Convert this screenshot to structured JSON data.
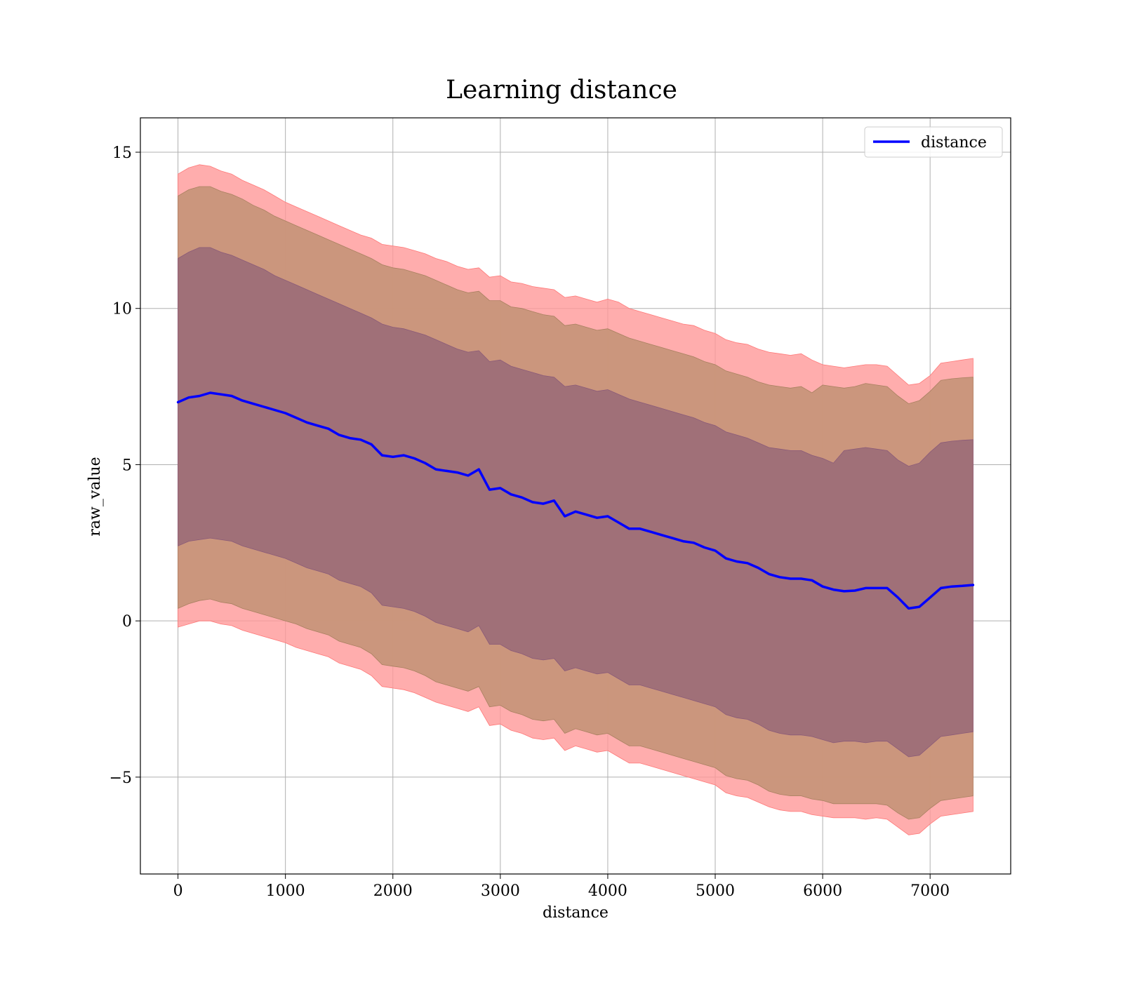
{
  "chart_data": {
    "type": "line",
    "title": "Learning distance",
    "xlabel": "distance",
    "ylabel": "raw_value",
    "xlim": [
      -350,
      7750
    ],
    "ylim": [
      -8.1,
      16.1
    ],
    "x_ticks": [
      0,
      1000,
      2000,
      3000,
      4000,
      5000,
      6000,
      7000
    ],
    "x_tick_labels": [
      "0",
      "1000",
      "2000",
      "3000",
      "4000",
      "5000",
      "6000",
      "7000"
    ],
    "y_ticks": [
      -5,
      0,
      5,
      10,
      15
    ],
    "y_tick_labels": [
      "−5",
      "0",
      "5",
      "10",
      "15"
    ],
    "grid": true,
    "legend": {
      "placement": "top-right",
      "entries": [
        "distance"
      ]
    },
    "colors": {
      "line": "#0000ff",
      "outer_band": "#ff9999",
      "middle_band": "#c8957a",
      "inner_band": "#a07078"
    },
    "series": [
      {
        "name": "distance",
        "x": [
          0,
          100,
          200,
          300,
          400,
          500,
          600,
          700,
          800,
          900,
          1000,
          1100,
          1200,
          1300,
          1400,
          1500,
          1600,
          1700,
          1800,
          1900,
          2000,
          2100,
          2200,
          2300,
          2400,
          2500,
          2600,
          2700,
          2800,
          2900,
          3000,
          3100,
          3200,
          3300,
          3400,
          3500,
          3600,
          3700,
          3800,
          3900,
          4000,
          4100,
          4200,
          4300,
          4400,
          4500,
          4600,
          4700,
          4800,
          4900,
          5000,
          5100,
          5200,
          5300,
          5400,
          5500,
          5600,
          5700,
          5800,
          5900,
          6000,
          6100,
          6200,
          6300,
          6400,
          6500,
          6600,
          6700,
          6800,
          6900,
          7000,
          7100,
          7200,
          7300,
          7400
        ],
        "y": [
          7.0,
          7.15,
          7.2,
          7.3,
          7.25,
          7.2,
          7.05,
          6.95,
          6.85,
          6.75,
          6.65,
          6.5,
          6.35,
          6.25,
          6.15,
          5.95,
          5.85,
          5.8,
          5.65,
          5.3,
          5.25,
          5.3,
          5.2,
          5.05,
          4.85,
          4.8,
          4.75,
          4.65,
          4.85,
          4.2,
          4.25,
          4.05,
          3.95,
          3.8,
          3.75,
          3.85,
          3.35,
          3.5,
          3.4,
          3.3,
          3.35,
          3.15,
          2.95,
          2.95,
          2.85,
          2.75,
          2.65,
          2.55,
          2.5,
          2.35,
          2.25,
          2.0,
          1.9,
          1.85,
          1.7,
          1.5,
          1.4,
          1.35,
          1.35,
          1.3,
          1.1,
          1.0,
          0.95,
          0.97,
          1.05,
          1.05,
          1.05,
          0.75,
          0.4,
          0.45,
          0.75,
          1.05,
          1.1,
          1.12,
          1.15
        ],
        "outer_upper": [
          14.3,
          14.5,
          14.6,
          14.55,
          14.4,
          14.3,
          14.1,
          13.95,
          13.8,
          13.6,
          13.4,
          13.25,
          13.1,
          12.95,
          12.8,
          12.65,
          12.5,
          12.35,
          12.25,
          12.05,
          12.0,
          11.95,
          11.85,
          11.75,
          11.6,
          11.5,
          11.35,
          11.25,
          11.3,
          11.0,
          11.05,
          10.85,
          10.8,
          10.7,
          10.65,
          10.6,
          10.35,
          10.4,
          10.3,
          10.2,
          10.3,
          10.2,
          10.0,
          9.9,
          9.8,
          9.7,
          9.6,
          9.5,
          9.45,
          9.3,
          9.2,
          9.0,
          8.9,
          8.85,
          8.7,
          8.6,
          8.55,
          8.5,
          8.55,
          8.35,
          8.2,
          8.15,
          8.1,
          8.15,
          8.2,
          8.2,
          8.15,
          7.85,
          7.55,
          7.6,
          7.85,
          8.25,
          8.3,
          8.35,
          8.4
        ],
        "middle_upper": [
          13.6,
          13.8,
          13.9,
          13.9,
          13.75,
          13.65,
          13.5,
          13.3,
          13.15,
          12.95,
          12.8,
          12.65,
          12.5,
          12.35,
          12.2,
          12.05,
          11.9,
          11.75,
          11.6,
          11.4,
          11.3,
          11.25,
          11.15,
          11.05,
          10.9,
          10.75,
          10.6,
          10.5,
          10.55,
          10.25,
          10.25,
          10.05,
          10.0,
          9.9,
          9.8,
          9.75,
          9.45,
          9.5,
          9.4,
          9.3,
          9.35,
          9.2,
          9.05,
          8.95,
          8.85,
          8.75,
          8.65,
          8.55,
          8.45,
          8.3,
          8.2,
          8.0,
          7.9,
          7.8,
          7.65,
          7.55,
          7.5,
          7.45,
          7.5,
          7.3,
          7.55,
          7.5,
          7.45,
          7.5,
          7.6,
          7.55,
          7.5,
          7.2,
          6.95,
          7.05,
          7.35,
          7.7,
          7.75,
          7.78,
          7.8
        ],
        "inner_upper": [
          11.6,
          11.8,
          11.95,
          11.95,
          11.8,
          11.7,
          11.55,
          11.4,
          11.25,
          11.05,
          10.9,
          10.75,
          10.6,
          10.45,
          10.3,
          10.15,
          10.0,
          9.85,
          9.7,
          9.5,
          9.4,
          9.35,
          9.25,
          9.15,
          9.0,
          8.85,
          8.7,
          8.6,
          8.65,
          8.3,
          8.35,
          8.15,
          8.05,
          7.95,
          7.85,
          7.8,
          7.5,
          7.55,
          7.45,
          7.35,
          7.4,
          7.25,
          7.1,
          7.0,
          6.9,
          6.8,
          6.7,
          6.6,
          6.5,
          6.35,
          6.25,
          6.05,
          5.95,
          5.85,
          5.7,
          5.55,
          5.5,
          5.45,
          5.45,
          5.3,
          5.2,
          5.05,
          5.45,
          5.5,
          5.55,
          5.5,
          5.45,
          5.15,
          4.95,
          5.05,
          5.4,
          5.7,
          5.75,
          5.78,
          5.8
        ],
        "inner_lower": [
          2.4,
          2.55,
          2.6,
          2.65,
          2.6,
          2.55,
          2.4,
          2.3,
          2.2,
          2.1,
          2.0,
          1.85,
          1.7,
          1.6,
          1.5,
          1.3,
          1.2,
          1.1,
          0.9,
          0.5,
          0.45,
          0.4,
          0.3,
          0.15,
          -0.05,
          -0.15,
          -0.25,
          -0.35,
          -0.15,
          -0.75,
          -0.75,
          -0.95,
          -1.05,
          -1.2,
          -1.25,
          -1.2,
          -1.6,
          -1.5,
          -1.6,
          -1.7,
          -1.65,
          -1.85,
          -2.05,
          -2.05,
          -2.15,
          -2.25,
          -2.35,
          -2.45,
          -2.55,
          -2.65,
          -2.75,
          -3.0,
          -3.1,
          -3.15,
          -3.3,
          -3.5,
          -3.6,
          -3.65,
          -3.65,
          -3.7,
          -3.8,
          -3.9,
          -3.85,
          -3.85,
          -3.9,
          -3.85,
          -3.85,
          -4.1,
          -4.35,
          -4.3,
          -4.0,
          -3.7,
          -3.65,
          -3.6,
          -3.55
        ],
        "middle_lower": [
          0.4,
          0.55,
          0.65,
          0.7,
          0.6,
          0.55,
          0.4,
          0.3,
          0.2,
          0.1,
          0.0,
          -0.1,
          -0.25,
          -0.35,
          -0.45,
          -0.65,
          -0.75,
          -0.85,
          -1.05,
          -1.4,
          -1.45,
          -1.5,
          -1.6,
          -1.75,
          -1.95,
          -2.05,
          -2.15,
          -2.25,
          -2.1,
          -2.75,
          -2.7,
          -2.9,
          -3.0,
          -3.15,
          -3.2,
          -3.15,
          -3.6,
          -3.45,
          -3.55,
          -3.65,
          -3.6,
          -3.8,
          -4.0,
          -4.0,
          -4.1,
          -4.2,
          -4.3,
          -4.4,
          -4.5,
          -4.6,
          -4.7,
          -4.95,
          -5.05,
          -5.1,
          -5.25,
          -5.45,
          -5.55,
          -5.6,
          -5.6,
          -5.7,
          -5.75,
          -5.85,
          -5.85,
          -5.85,
          -5.85,
          -5.85,
          -5.9,
          -6.15,
          -6.35,
          -6.3,
          -6.0,
          -5.75,
          -5.7,
          -5.65,
          -5.6
        ],
        "outer_lower": [
          -0.2,
          -0.1,
          0.0,
          0.0,
          -0.1,
          -0.15,
          -0.3,
          -0.4,
          -0.5,
          -0.6,
          -0.7,
          -0.85,
          -0.95,
          -1.05,
          -1.15,
          -1.35,
          -1.45,
          -1.55,
          -1.75,
          -2.1,
          -2.15,
          -2.2,
          -2.3,
          -2.45,
          -2.6,
          -2.7,
          -2.8,
          -2.9,
          -2.75,
          -3.35,
          -3.3,
          -3.5,
          -3.6,
          -3.75,
          -3.8,
          -3.75,
          -4.15,
          -4.0,
          -4.1,
          -4.2,
          -4.15,
          -4.35,
          -4.55,
          -4.55,
          -4.65,
          -4.75,
          -4.85,
          -4.95,
          -5.05,
          -5.15,
          -5.25,
          -5.5,
          -5.6,
          -5.65,
          -5.8,
          -5.95,
          -6.05,
          -6.1,
          -6.1,
          -6.2,
          -6.25,
          -6.3,
          -6.3,
          -6.3,
          -6.35,
          -6.3,
          -6.35,
          -6.6,
          -6.85,
          -6.8,
          -6.5,
          -6.25,
          -6.2,
          -6.15,
          -6.1
        ]
      }
    ]
  }
}
